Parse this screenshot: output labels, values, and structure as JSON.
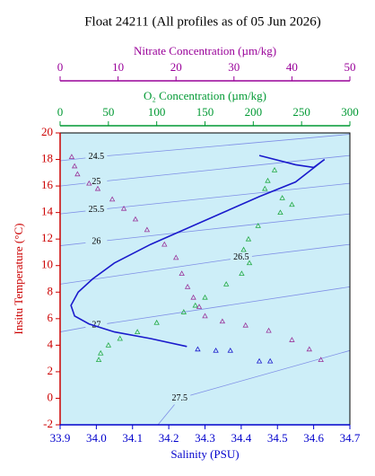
{
  "chart_data": {
    "type": "scatter",
    "title": "Float 24211  (All profiles as of 05 Jun 2026)",
    "xlabel": "Salinity (PSU)",
    "ylabel": "Insitu Temperature (°C)",
    "xlim": [
      33.9,
      34.7
    ],
    "xticks": [
      33.9,
      {
        "value": 34,
        "label": "34.0"
      },
      34.1,
      34.2,
      34.3,
      34.4,
      34.5,
      34.6,
      34.7
    ],
    "ylim": [
      -2,
      20
    ],
    "yticks": [
      -2,
      0,
      2,
      4,
      6,
      8,
      10,
      12,
      14,
      16,
      18,
      20
    ],
    "background": "#cdeef8",
    "o2_axis": {
      "label": "O₂ Concentration (µm/kg)",
      "color": "#009933",
      "lim": [
        0,
        300
      ],
      "ticks": [
        0,
        50,
        100,
        150,
        200,
        250,
        300
      ]
    },
    "nitrate_axis": {
      "label": "Nitrate Concentration (µm/kg)",
      "color": "#990099",
      "lim": [
        0,
        50
      ],
      "ticks": [
        0,
        10,
        20,
        30,
        40,
        50
      ]
    },
    "contours": [
      {
        "label": 24.5,
        "x": [
          33.9,
          34.0,
          34.7
        ],
        "y": [
          17.9,
          18.2,
          19.9
        ]
      },
      {
        "label": 25,
        "x": [
          33.9,
          34.0,
          34.7
        ],
        "y": [
          16.0,
          16.3,
          18.3
        ]
      },
      {
        "label": 25.5,
        "x": [
          33.9,
          34.0,
          34.7
        ],
        "y": [
          13.9,
          14.2,
          16.2
        ]
      },
      {
        "label": 26,
        "x": [
          33.9,
          34.0,
          34.7
        ],
        "y": [
          11.5,
          11.8,
          13.9
        ]
      },
      {
        "label": 26.5,
        "x": [
          33.9,
          34.4,
          34.7
        ],
        "y": [
          8.6,
          10.6,
          11.6
        ]
      },
      {
        "label": 27,
        "x": [
          33.9,
          34.0,
          34.7
        ],
        "y": [
          5.0,
          5.5,
          8.4
        ]
      },
      {
        "label": 27.5,
        "x": [
          34.17,
          34.23,
          34.7
        ],
        "y": [
          -2.0,
          0.0,
          3.6
        ]
      }
    ],
    "series": [
      {
        "axis": "salinity",
        "marker": "line",
        "color": "#1a1acc",
        "x": [
          34.45,
          34.55,
          34.6,
          34.63,
          34.55,
          34.45,
          34.35,
          34.25,
          34.15,
          34.05,
          33.99,
          33.95,
          33.93,
          33.94,
          33.98,
          34.05,
          34.15,
          34.25
        ],
        "y": [
          18.3,
          17.6,
          17.4,
          18.0,
          16.3,
          15.2,
          14.0,
          12.8,
          11.6,
          10.2,
          9.0,
          8.0,
          7.0,
          6.2,
          5.6,
          5.0,
          4.5,
          3.9
        ]
      },
      {
        "axis": "salinity",
        "marker": "triangle",
        "color": "#1a1acc",
        "x": [
          34.28,
          34.33,
          34.37,
          34.45,
          34.48
        ],
        "y": [
          3.7,
          3.6,
          3.6,
          2.8,
          2.8
        ]
      },
      {
        "axis": "o2",
        "marker": "triangle",
        "color": "#22aa44",
        "x": [
          222,
          215,
          212,
          230,
          240,
          228,
          205,
          195,
          190,
          196,
          188,
          172,
          150,
          140,
          128,
          100,
          80,
          62,
          50,
          42,
          40
        ],
        "y": [
          17.2,
          16.4,
          15.8,
          15.1,
          14.6,
          14.0,
          13.0,
          12.0,
          11.2,
          10.2,
          9.4,
          8.6,
          7.6,
          7.0,
          6.5,
          5.7,
          5.0,
          4.5,
          4.0,
          3.4,
          2.9
        ]
      },
      {
        "axis": "nitrate",
        "marker": "triangle",
        "color": "#993399",
        "x": [
          2,
          2.5,
          3,
          5,
          6.5,
          9,
          11,
          13,
          15,
          18,
          20,
          21,
          22,
          23,
          24,
          25,
          28,
          32,
          36,
          40,
          43,
          45
        ],
        "y": [
          18.2,
          17.5,
          16.9,
          16.2,
          15.8,
          15.0,
          14.3,
          13.5,
          12.7,
          11.6,
          10.6,
          9.4,
          8.4,
          7.6,
          6.9,
          6.2,
          5.8,
          5.5,
          5.1,
          4.4,
          3.7,
          2.9
        ]
      }
    ]
  }
}
